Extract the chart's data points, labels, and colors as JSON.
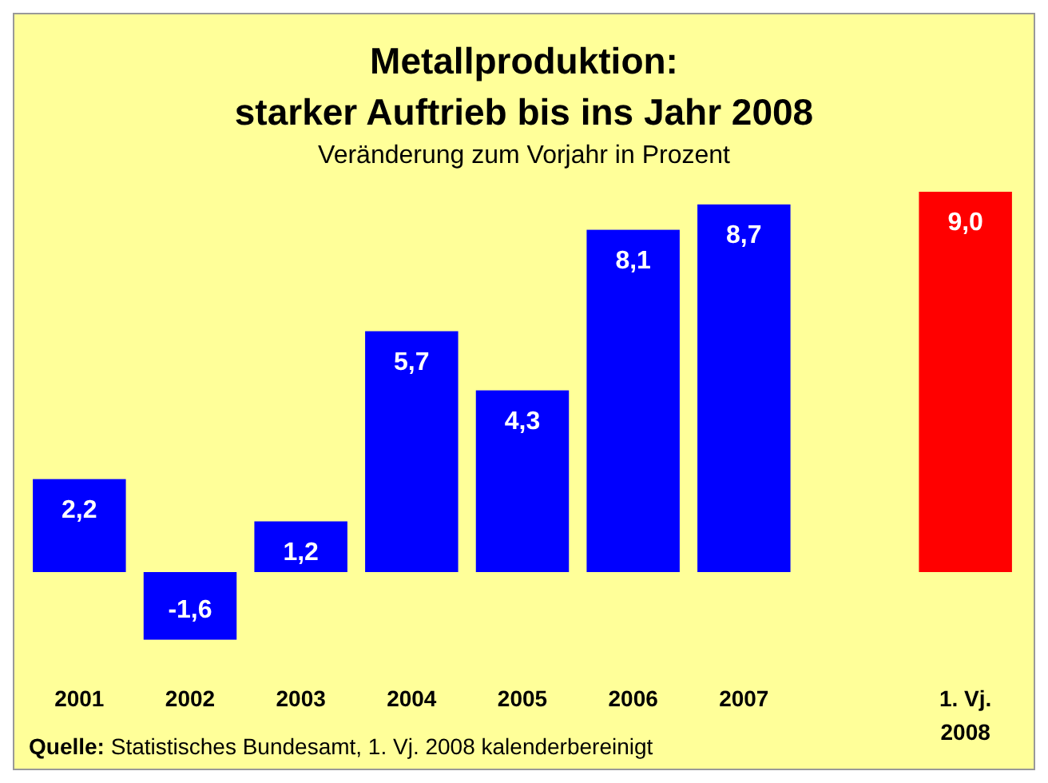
{
  "chart_data": {
    "type": "bar",
    "title": "Metallproduktion:\nstarker Auftrieb bis ins Jahr 2008",
    "subtitle": "Veränderung zum Vorjahr in Prozent",
    "categories": [
      "2001",
      "2002",
      "2003",
      "2004",
      "2005",
      "2006",
      "2007",
      null,
      "1. Vj. 2008"
    ],
    "values": [
      2.2,
      -1.6,
      1.2,
      5.7,
      4.3,
      8.1,
      8.7,
      null,
      9.0
    ],
    "colors": [
      "#0000ff",
      "#0000ff",
      "#0000ff",
      "#0000ff",
      "#0000ff",
      "#0000ff",
      "#0000ff",
      null,
      "#ff0000"
    ],
    "value_labels": [
      "2,2",
      "-1,6",
      "1,2",
      "5,7",
      "4,3",
      "8,1",
      "8,7",
      null,
      "9,0"
    ],
    "annotations": [
      "Quelle: Statistisches Bundesamt, 1. Vj. 2008 kalenderbereinigt"
    ]
  }
}
